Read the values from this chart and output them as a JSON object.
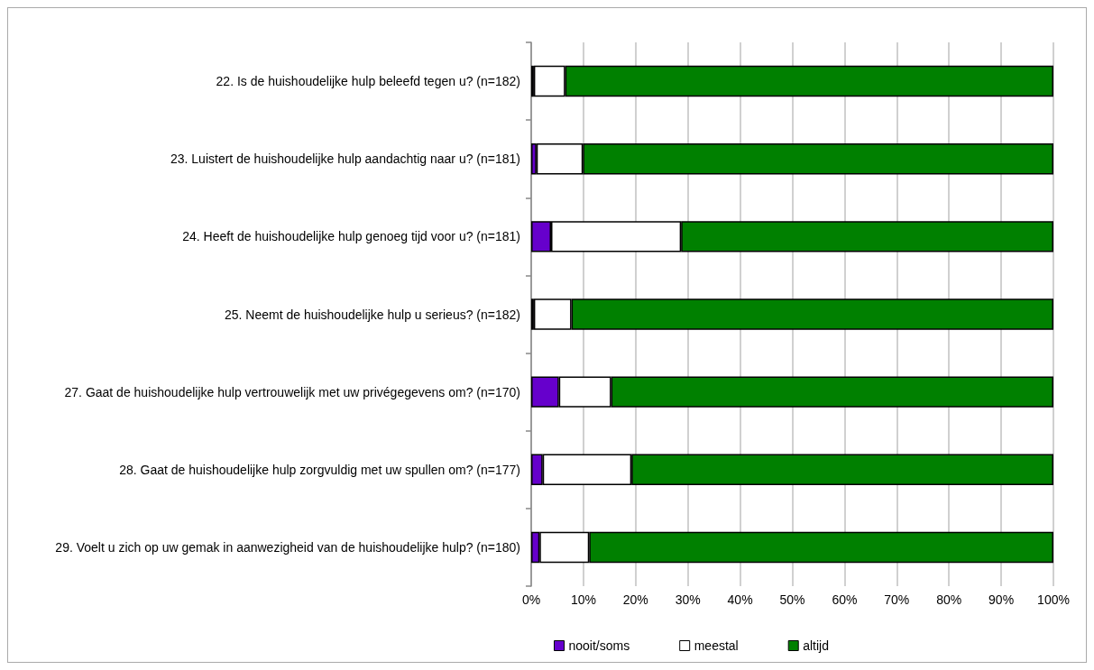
{
  "chart_data": {
    "type": "bar",
    "orientation": "horizontal",
    "stacked": true,
    "categories": [
      "22. Is de huishoudelijke hulp beleefd tegen u? (n=182)",
      "23. Luistert de huishoudelijke hulp aandachtig naar u? (n=181)",
      "24. Heeft de huishoudelijke hulp genoeg tijd voor u? (n=181)",
      "25. Neemt de huishoudelijke hulp u serieus? (n=182)",
      "27. Gaat de huishoudelijke hulp vertrouwelijk met uw privégegevens om? (n=170)",
      "28. Gaat de huishoudelijke hulp zorgvuldig met uw spullen om? (n=177)",
      "29. Voelt u zich op uw gemak in aanwezigheid van de huishoudelijke hulp? (n=180)"
    ],
    "series": [
      {
        "name": "nooit/soms",
        "color": "#6600cc",
        "values": [
          0.5,
          1.0,
          3.8,
          0.5,
          5.3,
          2.2,
          1.6
        ]
      },
      {
        "name": "meestal",
        "color": "#ffffff",
        "values": [
          6.0,
          8.9,
          24.9,
          7.2,
          10.0,
          17.0,
          9.5
        ]
      },
      {
        "name": "altijd",
        "color": "#008000",
        "values": [
          93.5,
          90.1,
          71.3,
          92.3,
          84.7,
          80.8,
          88.9
        ]
      }
    ],
    "xlim": [
      0,
      100
    ],
    "xticks": [
      {
        "value": 0,
        "label": "0%"
      },
      {
        "value": 10,
        "label": "10%"
      },
      {
        "value": 20,
        "label": "20%"
      },
      {
        "value": 30,
        "label": "30%"
      },
      {
        "value": 40,
        "label": "40%"
      },
      {
        "value": 50,
        "label": "50%"
      },
      {
        "value": 60,
        "label": "60%"
      },
      {
        "value": 70,
        "label": "70%"
      },
      {
        "value": 80,
        "label": "80%"
      },
      {
        "value": 90,
        "label": "90%"
      },
      {
        "value": 100,
        "label": "100%"
      }
    ],
    "grid": "x",
    "legend": "bottom"
  }
}
